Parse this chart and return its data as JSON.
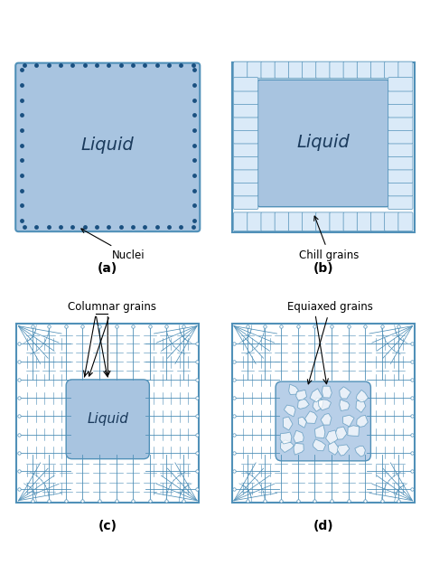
{
  "fig_width": 4.77,
  "fig_height": 6.35,
  "bg_color": "#ffffff",
  "liquid_fill": "#a8c4e0",
  "liquid_fill_light": "#b8cfe8",
  "border_color": "#5090b8",
  "grain_line_color": "#5090b8",
  "nuclei_color": "#1a5080",
  "label_a": "(a)",
  "label_b": "(b)",
  "label_c": "(c)",
  "label_d": "(d)",
  "text_nuclei": "Nuclei",
  "text_chill": "Chill grains",
  "text_columnar": "Columnar grains",
  "text_equiaxed": "Equiaxed grains",
  "text_liquid": "Liquid"
}
